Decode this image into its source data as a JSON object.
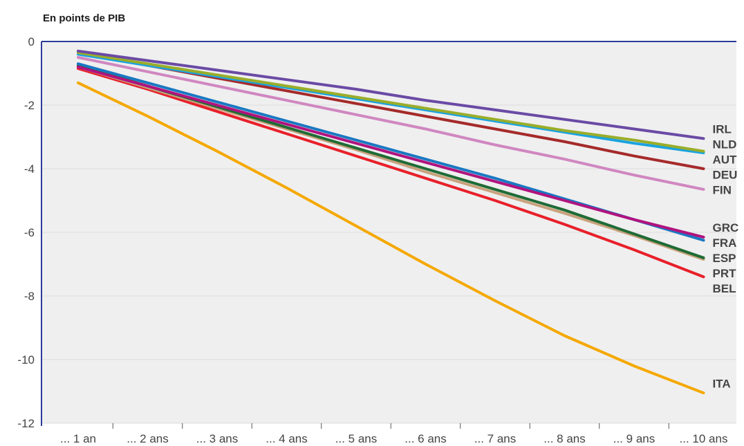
{
  "chart_data": {
    "type": "line",
    "title": "En points de PIB",
    "xlabel": "",
    "ylabel": "",
    "ylim": [
      -12,
      0
    ],
    "yticks": [
      0,
      -2,
      -4,
      -6,
      -8,
      -10,
      -12
    ],
    "categories": [
      "... 1 an",
      "... 2 ans",
      "... 3 ans",
      "... 4 ans",
      "... 5 ans",
      "... 6 ans",
      "... 7 ans",
      "... 8 ans",
      "... 9 ans",
      "... 10 ans"
    ],
    "grid": true,
    "series": [
      {
        "name": "IRL",
        "color": "#6a4aa5",
        "values": [
          -0.3,
          -0.6,
          -0.9,
          -1.2,
          -1.5,
          -1.85,
          -2.15,
          -2.45,
          -2.75,
          -3.05
        ]
      },
      {
        "name": "NLD",
        "color": "#9aad2a",
        "values": [
          -0.35,
          -0.7,
          -1.05,
          -1.4,
          -1.75,
          -2.1,
          -2.45,
          -2.8,
          -3.1,
          -3.45
        ]
      },
      {
        "name": "AUT",
        "color": "#1aa3e0",
        "values": [
          -0.4,
          -0.75,
          -1.1,
          -1.45,
          -1.8,
          -2.15,
          -2.5,
          -2.85,
          -3.2,
          -3.5
        ]
      },
      {
        "name": "DEU",
        "color": "#a52a2a",
        "values": [
          -0.35,
          -0.75,
          -1.15,
          -1.55,
          -1.95,
          -2.35,
          -2.75,
          -3.15,
          -3.6,
          -4.0
        ]
      },
      {
        "name": "FIN",
        "color": "#d087c0",
        "values": [
          -0.5,
          -0.95,
          -1.4,
          -1.85,
          -2.3,
          -2.75,
          -3.25,
          -3.7,
          -4.2,
          -4.65
        ]
      },
      {
        "name": "GRC",
        "color": "#b0137e",
        "values": [
          -0.8,
          -1.4,
          -2.0,
          -2.6,
          -3.2,
          -3.8,
          -4.4,
          -5.0,
          -5.6,
          -6.15
        ]
      },
      {
        "name": "FRA",
        "color": "#1a78c2",
        "values": [
          -0.7,
          -1.3,
          -1.9,
          -2.5,
          -3.1,
          -3.7,
          -4.3,
          -4.95,
          -5.6,
          -6.25
        ]
      },
      {
        "name": "ESP",
        "color": "#1f6b36",
        "values": [
          -0.75,
          -1.4,
          -2.05,
          -2.7,
          -3.35,
          -4.0,
          -4.65,
          -5.3,
          -6.05,
          -6.8
        ]
      },
      {
        "name": "PRT",
        "color": "#c8a27c",
        "values": [
          -0.8,
          -1.45,
          -2.1,
          -2.75,
          -3.4,
          -4.1,
          -4.75,
          -5.4,
          -6.1,
          -6.85
        ]
      },
      {
        "name": "BEL",
        "color": "#e8202a",
        "values": [
          -0.85,
          -1.5,
          -2.2,
          -2.9,
          -3.6,
          -4.3,
          -5.0,
          -5.75,
          -6.55,
          -7.4
        ]
      },
      {
        "name": "ITA",
        "color": "#f5a800",
        "values": [
          -1.3,
          -2.35,
          -3.45,
          -4.6,
          -5.8,
          -7.0,
          -8.15,
          -9.25,
          -10.2,
          -11.05
        ]
      }
    ]
  }
}
